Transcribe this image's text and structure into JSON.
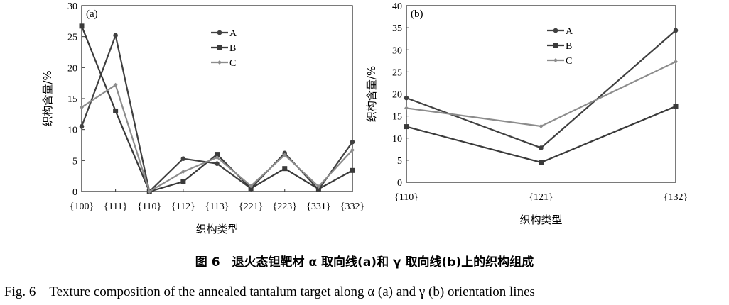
{
  "chart_data": [
    {
      "type": "line",
      "panel_label": "(a)",
      "xlabel": "织构类型",
      "ylabel": "织构含量/%",
      "categories": [
        "{100}",
        "{111}",
        "{110}",
        "{112}",
        "{113}",
        "{221}",
        "{223}",
        "{331}",
        "{332}"
      ],
      "ylim": [
        0,
        30
      ],
      "yticks": [
        0,
        5,
        10,
        15,
        20,
        25,
        30
      ],
      "grid": false,
      "legend": "top-center",
      "series": [
        {
          "name": "A",
          "marker": "circle",
          "color": "#404040",
          "values": [
            10.5,
            25.2,
            0,
            5.3,
            4.5,
            0.5,
            6.2,
            0.3,
            8.0
          ]
        },
        {
          "name": "B",
          "marker": "square",
          "color": "#3a3a3a",
          "values": [
            26.7,
            13.0,
            0,
            1.6,
            6.0,
            0.5,
            3.7,
            0.4,
            3.4
          ]
        },
        {
          "name": "C",
          "marker": "diamond",
          "color": "#8c8c8c",
          "values": [
            13.6,
            17.2,
            0,
            3.2,
            5.5,
            0.9,
            5.9,
            0.8,
            6.7
          ]
        }
      ]
    },
    {
      "type": "line",
      "panel_label": "(b)",
      "xlabel": "织构类型",
      "ylabel": "织构含量/%",
      "categories": [
        "{110}",
        "{121}",
        "{132}"
      ],
      "ylim": [
        0,
        40
      ],
      "yticks": [
        0,
        5,
        10,
        15,
        20,
        25,
        30,
        35,
        40
      ],
      "grid": false,
      "legend": "top-center",
      "series": [
        {
          "name": "A",
          "marker": "circle",
          "color": "#404040",
          "values": [
            19.1,
            7.8,
            34.4
          ]
        },
        {
          "name": "B",
          "marker": "square",
          "color": "#3a3a3a",
          "values": [
            12.6,
            4.5,
            17.2
          ]
        },
        {
          "name": "C",
          "marker": "diamond",
          "color": "#8c8c8c",
          "values": [
            16.8,
            12.7,
            27.3
          ]
        }
      ]
    }
  ],
  "caption": {
    "cn": "图 6　退火态钽靶材 α 取向线(a)和 γ 取向线(b)上的织构组成",
    "en": "Fig. 6　Texture composition of the annealed tantalum target along α (a) and γ (b) orientation lines"
  }
}
